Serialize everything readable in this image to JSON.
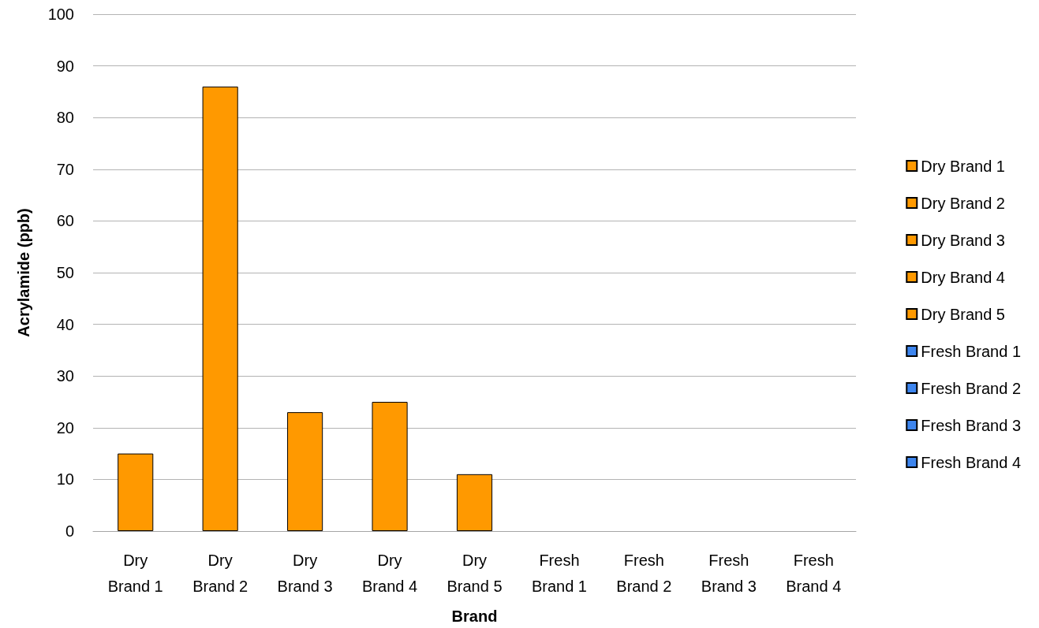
{
  "chart_data": {
    "type": "bar",
    "xlabel": "Brand",
    "ylabel": "Acrylamide (ppb)",
    "categories": [
      "Dry Brand 1",
      "Dry Brand 2",
      "Dry Brand 3",
      "Dry Brand 4",
      "Dry Brand 5",
      "Fresh Brand 1",
      "Fresh Brand 2",
      "Fresh Brand 3",
      "Fresh Brand 4"
    ],
    "series": [
      {
        "name": "Dry Brand 1",
        "color": "#ff9900",
        "values": [
          15,
          null,
          null,
          null,
          null,
          null,
          null,
          null,
          null
        ]
      },
      {
        "name": "Dry Brand 2",
        "color": "#ff9900",
        "values": [
          null,
          86,
          null,
          null,
          null,
          null,
          null,
          null,
          null
        ]
      },
      {
        "name": "Dry Brand 3",
        "color": "#ff9900",
        "values": [
          null,
          null,
          23,
          null,
          null,
          null,
          null,
          null,
          null
        ]
      },
      {
        "name": "Dry Brand 4",
        "color": "#ff9900",
        "values": [
          null,
          null,
          null,
          25,
          null,
          null,
          null,
          null,
          null
        ]
      },
      {
        "name": "Dry Brand 5",
        "color": "#ff9900",
        "values": [
          null,
          null,
          null,
          null,
          11,
          null,
          null,
          null,
          null
        ]
      },
      {
        "name": "Fresh Brand 1",
        "color": "#3d85ee",
        "values": [
          null,
          null,
          null,
          null,
          null,
          0,
          null,
          null,
          null
        ]
      },
      {
        "name": "Fresh Brand 2",
        "color": "#3d85ee",
        "values": [
          null,
          null,
          null,
          null,
          null,
          null,
          0,
          null,
          null
        ]
      },
      {
        "name": "Fresh Brand 3",
        "color": "#3d85ee",
        "values": [
          null,
          null,
          null,
          null,
          null,
          null,
          null,
          0,
          null
        ]
      },
      {
        "name": "Fresh Brand 4",
        "color": "#3d85ee",
        "values": [
          null,
          null,
          null,
          null,
          null,
          null,
          null,
          null,
          0
        ]
      }
    ],
    "ylim": [
      0,
      100
    ],
    "yticks": [
      0,
      10,
      20,
      30,
      40,
      50,
      60,
      70,
      80,
      90,
      100
    ],
    "grid": "y",
    "legend": "right"
  }
}
